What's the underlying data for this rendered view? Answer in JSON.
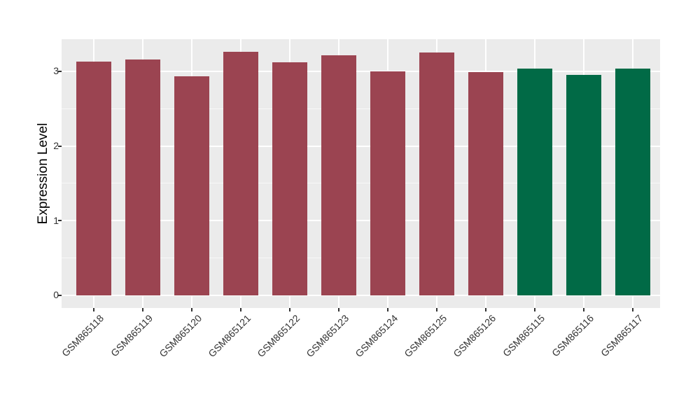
{
  "chart_data": {
    "type": "bar",
    "title": "",
    "xlabel": "",
    "ylabel": "Expression Level",
    "categories": [
      "GSM865118",
      "GSM865119",
      "GSM865120",
      "GSM865121",
      "GSM865122",
      "GSM865123",
      "GSM865124",
      "GSM865125",
      "GSM865126",
      "GSM865115",
      "GSM865116",
      "GSM865117"
    ],
    "values": [
      3.13,
      3.16,
      2.93,
      3.26,
      3.12,
      3.21,
      3.0,
      3.25,
      2.99,
      3.04,
      2.95,
      3.04
    ],
    "bar_colors": [
      "#9B4451",
      "#9B4451",
      "#9B4451",
      "#9B4451",
      "#9B4451",
      "#9B4451",
      "#9B4451",
      "#9B4451",
      "#9B4451",
      "#016A46",
      "#016A46",
      "#016A46"
    ],
    "group_colors": {
      "maroon_group": "#9B4451",
      "green_group": "#016A46"
    },
    "yticks": [
      0,
      1,
      2,
      3
    ],
    "minor_yticks": [
      0.5,
      1.5,
      2.5
    ],
    "ylim": [
      -0.17,
      3.43
    ],
    "legend": "none",
    "grid": "on",
    "style": {
      "figure_background": "#FFFFFF",
      "panel_background": "#EBEBEB",
      "grid_major_color": "#FFFFFF",
      "grid_minor_color": "#FFFFFF",
      "tick_color": "#333333",
      "axis_text_color": "#333333",
      "axis_title_color": "#000000"
    }
  }
}
